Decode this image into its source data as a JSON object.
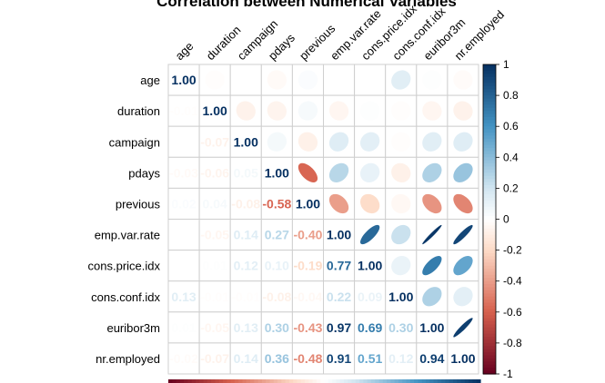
{
  "chart_data": {
    "type": "heatmap",
    "style": "correlation-matrix-mixed",
    "title": "Correlation between Numerical Variables",
    "variables": [
      "age",
      "duration",
      "campaign",
      "pdays",
      "previous",
      "emp.var.rate",
      "cons.price.idx",
      "cons.conf.idx",
      "euribor3m",
      "nr.employed"
    ],
    "matrix": [
      [
        1.0,
        -0.01,
        0.0,
        -0.03,
        0.02,
        0.0,
        0.0,
        0.13,
        0.01,
        -0.02
      ],
      [
        -0.01,
        1.0,
        -0.07,
        -0.06,
        0.04,
        -0.05,
        0.01,
        -0.01,
        -0.05,
        -0.07
      ],
      [
        0.0,
        -0.07,
        1.0,
        0.05,
        -0.08,
        0.14,
        0.12,
        -0.01,
        0.13,
        0.14
      ],
      [
        -0.03,
        -0.06,
        0.05,
        1.0,
        -0.58,
        0.27,
        0.1,
        -0.08,
        0.3,
        0.36
      ],
      [
        0.02,
        0.04,
        -0.08,
        -0.58,
        1.0,
        -0.4,
        -0.19,
        -0.04,
        -0.43,
        -0.48
      ],
      [
        0.0,
        -0.05,
        0.14,
        0.27,
        -0.4,
        1.0,
        0.77,
        0.22,
        0.97,
        0.91
      ],
      [
        0.0,
        0.01,
        0.12,
        0.1,
        -0.19,
        0.77,
        1.0,
        0.09,
        0.69,
        0.51
      ],
      [
        0.13,
        -0.01,
        -0.01,
        -0.08,
        -0.04,
        0.22,
        0.09,
        1.0,
        0.3,
        0.12
      ],
      [
        0.01,
        -0.05,
        0.13,
        0.3,
        -0.43,
        0.97,
        0.69,
        0.3,
        1.0,
        0.94
      ],
      [
        -0.02,
        -0.07,
        0.14,
        0.36,
        -0.48,
        0.91,
        0.51,
        0.12,
        0.94,
        1.0
      ]
    ],
    "lower_labels": [
      [
        "1.00",
        "",
        "",
        "",
        "",
        "",
        "",
        "",
        "",
        ""
      ],
      [
        "-0.01",
        "1.00",
        "",
        "",
        "",
        "",
        "",
        "",
        "",
        ""
      ],
      [
        "0.00",
        "-0.07",
        "1.00",
        "",
        "",
        "",
        "",
        "",
        "",
        ""
      ],
      [
        "-0.03",
        "-0.06",
        "0.05",
        "1.00",
        "",
        "",
        "",
        "",
        "",
        ""
      ],
      [
        "0.02",
        "0.04",
        "-0.08",
        "-0.58",
        "1.00",
        "",
        "",
        "",
        "",
        ""
      ],
      [
        "0.00",
        "-0.05",
        "0.14",
        "0.27",
        "-0.40",
        "1.00",
        "",
        "",
        "",
        ""
      ],
      [
        "0.00",
        "0.01",
        "0.12",
        "0.10",
        "-0.19",
        "0.77",
        "1.00",
        "",
        "",
        ""
      ],
      [
        "0.13",
        "-0.01",
        "-0.01",
        "-0.08",
        "-0.04",
        "0.22",
        "0.09",
        "1.00",
        "",
        ""
      ],
      [
        "0.01",
        "-0.05",
        "0.13",
        "0.30",
        "-0.43",
        "0.97",
        "0.69",
        "0.30",
        "1.00",
        ""
      ],
      [
        "-0.02",
        "-0.07",
        "0.14",
        "0.36",
        "-0.48",
        "0.91",
        "0.51",
        "0.12",
        "0.94",
        "1.00"
      ]
    ],
    "lower": "number",
    "upper": "ellipse",
    "diag": "number",
    "legend_range": [
      -1,
      1
    ],
    "legend_ticks": [
      "1",
      "0.8",
      "0.6",
      "0.4",
      "0.2",
      "0",
      "-0.2",
      "-0.4",
      "-0.6",
      "-0.8",
      "-1"
    ],
    "legend_position": "right"
  },
  "colors": {
    "neg_strong": "#67001F",
    "neg_mid": "#D6604D",
    "neg_light": "#FDDBC7",
    "neutral": "#FFFFFF",
    "pos_light": "#D1E5F0",
    "pos_mid": "#4393C3",
    "pos_strong": "#053061",
    "grid": "#cfcfcf"
  }
}
